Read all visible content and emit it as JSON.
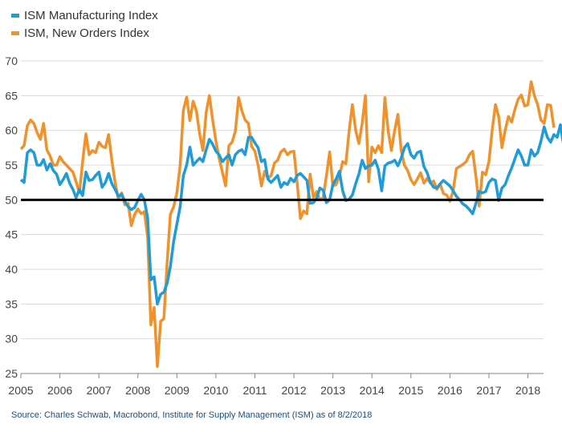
{
  "chart_data": {
    "type": "line",
    "x_start_year": 2005.0,
    "x_step_years": 0.08333,
    "x_ticks": [
      "2005",
      "2006",
      "2007",
      "2008",
      "2009",
      "2010",
      "2011",
      "2012",
      "2013",
      "2014",
      "2015",
      "2016",
      "2017",
      "2018"
    ],
    "ylim": [
      25,
      70
    ],
    "y_ticks": [
      "25",
      "30",
      "35",
      "40",
      "45",
      "50",
      "55",
      "60",
      "65",
      "70"
    ],
    "reference_line": 50,
    "grid": true,
    "legend_position": "top-left",
    "series": [
      {
        "name": "ISM Manufacturing Index",
        "color": "#1f9bd7",
        "values": [
          52.9,
          52.5,
          56.8,
          57.2,
          56.8,
          55.0,
          55.0,
          55.8,
          54.3,
          55.2,
          54.2,
          53.7,
          52.2,
          52.9,
          53.8,
          52.4,
          51.5,
          50.3,
          51.5,
          50.6,
          54.0,
          52.8,
          52.9,
          53.5,
          54.0,
          51.8,
          52.5,
          53.8,
          52.3,
          51.5,
          50.5,
          50.8,
          49.8,
          49.0,
          48.6,
          48.9,
          49.9,
          50.8,
          50.0,
          47.4,
          38.5,
          38.9,
          35.0,
          36.4,
          36.7,
          38.0,
          40.4,
          44.0,
          46.5,
          49.0,
          53.5,
          55.0,
          57.6,
          55.0,
          55.5,
          56.0,
          55.5,
          57.2,
          58.7,
          58.0,
          57.0,
          56.5,
          55.5,
          56.0,
          56.5,
          55.0,
          56.5,
          57.0,
          57.2,
          56.5,
          59.0,
          59.0,
          58.2,
          57.5,
          55.5,
          55.8,
          53.0,
          52.5,
          53.0,
          53.5,
          51.8,
          52.5,
          52.2,
          53.1,
          52.6,
          53.5,
          53.8,
          53.3,
          52.8,
          49.5,
          49.6,
          50.2,
          51.7,
          51.4,
          49.6,
          50.0,
          52.2,
          53.0,
          54.1,
          51.3,
          49.9,
          50.1,
          50.7,
          52.3,
          53.7,
          55.7,
          54.5,
          54.9,
          55.0,
          55.7,
          54.4,
          51.3,
          54.9,
          55.3,
          55.4,
          55.7,
          54.9,
          56.0,
          57.5,
          58.1,
          56.5,
          56.0,
          56.8,
          57.0,
          54.8,
          53.9,
          52.5,
          51.8,
          51.7,
          52.3,
          52.8,
          52.4,
          52.0,
          51.3,
          50.5,
          50.0,
          49.4,
          49.1,
          48.6,
          48.0,
          49.5,
          51.2,
          51.0,
          51.2,
          52.5,
          53.0,
          52.8,
          49.9,
          51.7,
          52.2,
          53.5,
          54.6,
          55.9,
          57.2,
          56.3,
          55.0,
          55.0,
          57.2,
          56.3,
          56.8,
          58.4,
          60.5,
          59.0,
          58.3,
          59.4,
          59.0,
          60.8,
          57.8,
          57.4,
          58.7,
          60.3,
          57.8
        ]
      },
      {
        "name": "ISM, New Orders Index",
        "color": "#f0922b",
        "values": [
          57.3,
          57.8,
          60.7,
          61.5,
          61.0,
          59.7,
          58.7,
          61.0,
          57.2,
          56.3,
          55.0,
          55.0,
          56.2,
          55.5,
          55.0,
          54.5,
          54.0,
          52.6,
          51.0,
          55.5,
          59.5,
          56.5,
          57.1,
          56.8,
          58.3,
          57.7,
          57.5,
          59.4,
          55.6,
          52.5,
          50.1,
          51.0,
          49.3,
          49.5,
          46.3,
          47.9,
          48.7,
          48.0,
          48.3,
          44.7,
          32.0,
          34.5,
          26.0,
          32.5,
          32.9,
          41.0,
          47.9,
          49.0,
          51.0,
          55.0,
          62.9,
          64.8,
          61.4,
          64.2,
          62.8,
          59.5,
          57.1,
          62.6,
          65.0,
          61.5,
          58.5,
          56.0,
          54.0,
          52.0,
          57.8,
          58.3,
          59.9,
          64.7,
          62.8,
          61.5,
          61.0,
          57.7,
          57.0,
          55.0,
          52.0,
          54.1,
          53.1,
          53.5,
          55.3,
          55.7,
          56.9,
          57.3,
          56.5,
          56.9,
          57.0,
          52.5,
          47.3,
          48.4,
          48.0,
          53.7,
          50.3,
          51.2,
          50.0,
          50.3,
          53.4,
          56.9,
          52.0,
          52.2,
          53.4,
          55.5,
          55.2,
          60.0,
          63.7,
          60.0,
          58.1,
          61.0,
          65.0,
          52.6,
          57.6,
          56.8,
          57.8,
          56.8,
          64.7,
          59.9,
          57.1,
          60.0,
          62.3,
          57.1,
          55.0,
          54.2,
          52.9,
          52.2,
          53.0,
          53.9,
          52.4,
          53.1,
          52.4,
          52.7,
          51.5,
          52.3,
          50.9,
          50.7,
          49.8,
          51.3,
          54.5,
          54.8,
          55.1,
          55.5,
          56.5,
          57.0,
          53.4,
          49.1,
          54.0,
          53.6,
          55.5,
          60.0,
          63.7,
          62.0,
          57.5,
          60.0,
          62.0,
          61.2,
          63.0,
          64.5,
          65.1,
          63.5,
          63.7,
          67.0,
          65.0,
          63.7,
          61.5,
          61.0,
          63.7,
          63.6,
          60.4
        ]
      }
    ]
  },
  "legend": {
    "items": [
      {
        "label": "ISM Manufacturing Index",
        "color": "#1f9bd7"
      },
      {
        "label": "ISM, New Orders Index",
        "color": "#f0922b"
      }
    ]
  },
  "source_note": "Source: Charles Schwab, Macrobond, Institute for Supply Management (ISM) as of 8/2/2018"
}
